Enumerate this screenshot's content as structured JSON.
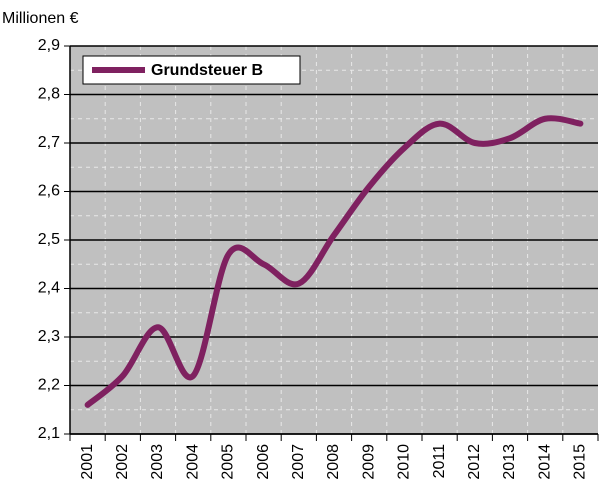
{
  "chart_data": {
    "type": "line",
    "y_label": "Millionen €",
    "categories": [
      "2001",
      "2002",
      "2003",
      "2004",
      "2005",
      "2006",
      "2007",
      "2008",
      "2009",
      "2010",
      "2011",
      "2012",
      "2013",
      "2014",
      "2015"
    ],
    "series": [
      {
        "name": "Grundsteuer B",
        "color": "#7f2160",
        "values": [
          2.16,
          2.22,
          2.32,
          2.22,
          2.47,
          2.45,
          2.41,
          2.51,
          2.61,
          2.69,
          2.74,
          2.7,
          2.71,
          2.75,
          2.74
        ]
      }
    ],
    "ylim": [
      2.1,
      2.9
    ],
    "yticks": [
      {
        "value": 2.1,
        "label": "2,1"
      },
      {
        "value": 2.2,
        "label": "2,2"
      },
      {
        "value": 2.3,
        "label": "2,3"
      },
      {
        "value": 2.4,
        "label": "2,4"
      },
      {
        "value": 2.5,
        "label": "2,5"
      },
      {
        "value": 2.6,
        "label": "2,6"
      },
      {
        "value": 2.7,
        "label": "2,7"
      },
      {
        "value": 2.8,
        "label": "2,8"
      },
      {
        "value": 2.9,
        "label": "2,9"
      }
    ],
    "grid": true,
    "legend": "upper left"
  }
}
